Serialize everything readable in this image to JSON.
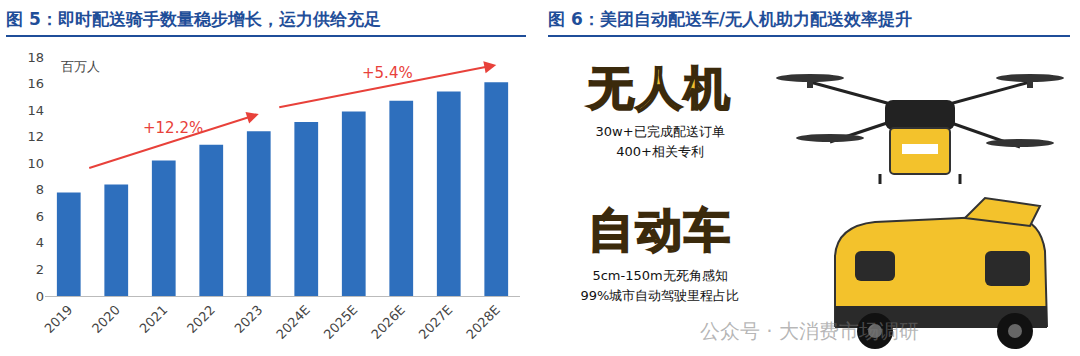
{
  "chart_data": {
    "type": "bar",
    "title": "图 5：即时配送骑手数量稳步增长，运力供给充足",
    "unit": "百万人",
    "categories": [
      "2019",
      "2020",
      "2021",
      "2022",
      "2023",
      "2024E",
      "2025E",
      "2026E",
      "2027E",
      "2028E"
    ],
    "values": [
      7.8,
      8.4,
      10.2,
      11.4,
      12.4,
      13.1,
      13.9,
      14.7,
      15.4,
      16.1
    ],
    "color": "#2e6fbd",
    "ylim": [
      0,
      18
    ],
    "yticks": [
      0,
      2,
      4,
      6,
      8,
      10,
      12,
      14,
      16,
      18
    ],
    "grid": false,
    "annotations": [
      {
        "text": "+12.2%",
        "from": "2019",
        "to": "2023",
        "color": "#e8413a"
      },
      {
        "text": "+5.4%",
        "from": "2023",
        "to": "2028E",
        "color": "#e8413a"
      }
    ]
  },
  "figure6": {
    "title": "图 6：美团自动配送车/无人机助力配送效率提升",
    "items": [
      {
        "heading": "无人机",
        "lines": [
          "30w+已完成配送订单",
          "400+相关专利"
        ]
      },
      {
        "heading": "自动车",
        "lines": [
          "5cm-150m无死角感知",
          "99%城市自动驾驶里程占比"
        ]
      }
    ]
  },
  "watermark": "公众号 · 大消费市场调研"
}
